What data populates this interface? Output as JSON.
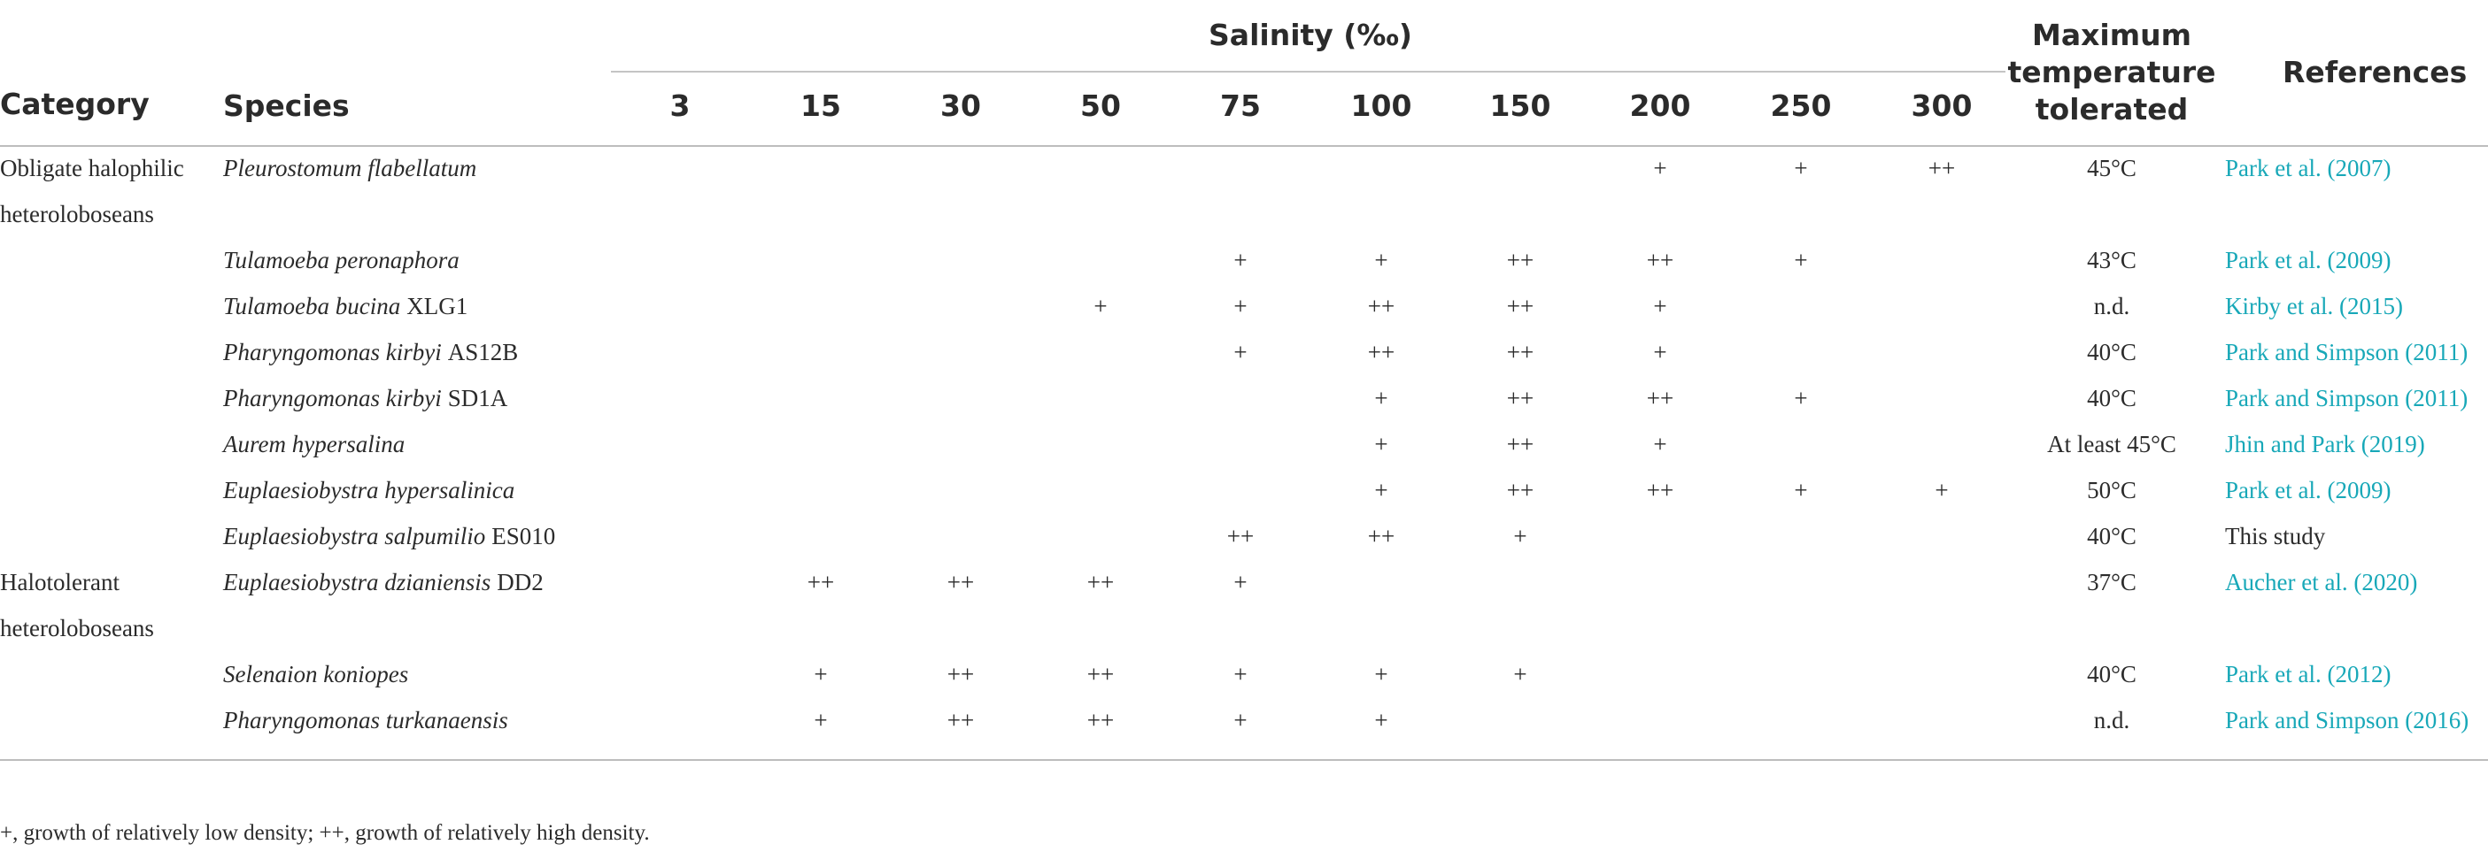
{
  "header": {
    "category": "Category",
    "species": "Species",
    "salinity": "Salinity (‰)",
    "salinity_levels": [
      "3",
      "15",
      "30",
      "50",
      "75",
      "100",
      "150",
      "200",
      "250",
      "300"
    ],
    "max_temp": [
      "Maximum",
      "temperature",
      "tolerated"
    ],
    "references": "References"
  },
  "rows": [
    {
      "category": [
        "Obligate halophilic",
        "heteroloboseans"
      ],
      "species": "Pleurostomum flabellatum",
      "strain": "",
      "growth": [
        "",
        "",
        "",
        "",
        "",
        "",
        "",
        "+",
        "+",
        "++"
      ],
      "temp": "45°C",
      "ref": "Park et al. (2007)",
      "ref_link": true
    },
    {
      "category": [],
      "species": "Tulamoeba peronaphora",
      "strain": "",
      "growth": [
        "",
        "",
        "",
        "",
        "+",
        "+",
        "++",
        "++",
        "+",
        ""
      ],
      "temp": "43°C",
      "ref": "Park et al. (2009)",
      "ref_link": true
    },
    {
      "category": [],
      "species": "Tulamoeba bucina",
      "strain": "XLG1",
      "growth": [
        "",
        "",
        "",
        "+",
        "+",
        "++",
        "++",
        "+",
        "",
        ""
      ],
      "temp": "n.d.",
      "ref": "Kirby et al. (2015)",
      "ref_link": true
    },
    {
      "category": [],
      "species": "Pharyngomonas kirbyi",
      "strain": "AS12B",
      "growth": [
        "",
        "",
        "",
        "",
        "+",
        "++",
        "++",
        "+",
        "",
        ""
      ],
      "temp": "40°C",
      "ref": "Park and Simpson (2011)",
      "ref_link": true
    },
    {
      "category": [],
      "species": "Pharyngomonas kirbyi",
      "strain": "SD1A",
      "growth": [
        "",
        "",
        "",
        "",
        "",
        "+",
        "++",
        "++",
        "+",
        ""
      ],
      "temp": "40°C",
      "ref": "Park and Simpson (2011)",
      "ref_link": true
    },
    {
      "category": [],
      "species": "Aurem hypersalina",
      "strain": "",
      "growth": [
        "",
        "",
        "",
        "",
        "",
        "+",
        "++",
        "+",
        "",
        ""
      ],
      "temp": "At least 45°C",
      "ref": "Jhin and Park (2019)",
      "ref_link": true
    },
    {
      "category": [],
      "species": "Euplaesiobystra hypersalinica",
      "strain": "",
      "growth": [
        "",
        "",
        "",
        "",
        "",
        "+",
        "++",
        "++",
        "+",
        "+"
      ],
      "temp": "50°C",
      "ref": "Park et al. (2009)",
      "ref_link": true
    },
    {
      "category": [],
      "species": "Euplaesiobystra salpumilio",
      "strain": "ES010",
      "growth": [
        "",
        "",
        "",
        "",
        "++",
        "++",
        "+",
        "",
        "",
        ""
      ],
      "temp": "40°C",
      "ref": "This study",
      "ref_link": false
    },
    {
      "category": [
        "Halotolerant",
        "heteroloboseans"
      ],
      "species": "Euplaesiobystra dzianiensis",
      "strain": "DD2",
      "growth": [
        "",
        "++",
        "++",
        "++",
        "+",
        "",
        "",
        "",
        "",
        ""
      ],
      "temp": "37°C",
      "ref": "Aucher et al. (2020)",
      "ref_link": true
    },
    {
      "category": [],
      "species": "Selenaion koniopes",
      "strain": "",
      "growth": [
        "",
        "+",
        "++",
        "++",
        "+",
        "+",
        "+",
        "",
        "",
        ""
      ],
      "temp": "40°C",
      "ref": "Park et al. (2012)",
      "ref_link": true
    },
    {
      "category": [],
      "species": "Pharyngomonas turkanaensis",
      "strain": "",
      "growth": [
        "",
        "+",
        "++",
        "++",
        "+",
        "+",
        "",
        "",
        "",
        ""
      ],
      "temp": "n.d.",
      "ref": "Park and Simpson (2016)",
      "ref_link": true
    }
  ],
  "footnote": "+, growth of relatively low density; ++, growth of relatively high density.",
  "colors": {
    "reference_link": "#18a8b8",
    "text": "#2b2b2b",
    "rule": "#bdbdbd"
  }
}
